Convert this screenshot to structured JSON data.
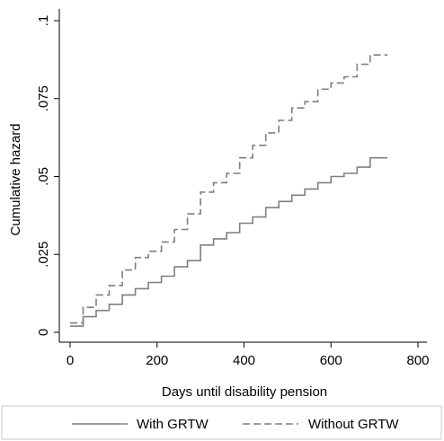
{
  "chart_data": {
    "type": "line",
    "step": true,
    "xlabel": "Days until disability pension",
    "ylabel": "Cumulative hazard",
    "xlim": [
      0,
      800
    ],
    "ylim": [
      0,
      0.1
    ],
    "x_ticks": [
      0,
      200,
      400,
      600,
      800
    ],
    "x_tick_labels": [
      "0",
      "200",
      "400",
      "600",
      "800"
    ],
    "y_ticks": [
      0,
      0.025,
      0.05,
      0.075,
      0.1
    ],
    "y_tick_labels": [
      "0",
      ".025",
      ".05",
      ".075",
      ".1"
    ],
    "grid": false,
    "legend_position": "bottom",
    "series": [
      {
        "name": "With GRTW",
        "color": "#7f7f7f",
        "dash": "solid",
        "x": [
          0,
          30,
          60,
          90,
          120,
          150,
          180,
          210,
          240,
          270,
          300,
          330,
          360,
          390,
          420,
          450,
          480,
          510,
          540,
          570,
          600,
          630,
          660,
          690,
          730
        ],
        "y": [
          0.002,
          0.005,
          0.007,
          0.009,
          0.012,
          0.014,
          0.016,
          0.018,
          0.021,
          0.023,
          0.028,
          0.03,
          0.032,
          0.035,
          0.037,
          0.04,
          0.042,
          0.044,
          0.046,
          0.048,
          0.05,
          0.051,
          0.053,
          0.056,
          0.056
        ]
      },
      {
        "name": "Without GRTW",
        "color": "#7f7f7f",
        "dash": "dashed",
        "x": [
          0,
          30,
          60,
          90,
          120,
          150,
          180,
          210,
          240,
          270,
          300,
          330,
          360,
          390,
          420,
          450,
          480,
          510,
          540,
          570,
          600,
          630,
          660,
          690,
          730
        ],
        "y": [
          0.003,
          0.008,
          0.012,
          0.015,
          0.02,
          0.024,
          0.026,
          0.029,
          0.033,
          0.038,
          0.045,
          0.048,
          0.051,
          0.056,
          0.06,
          0.064,
          0.068,
          0.072,
          0.074,
          0.078,
          0.08,
          0.082,
          0.086,
          0.089,
          0.089
        ]
      }
    ]
  }
}
